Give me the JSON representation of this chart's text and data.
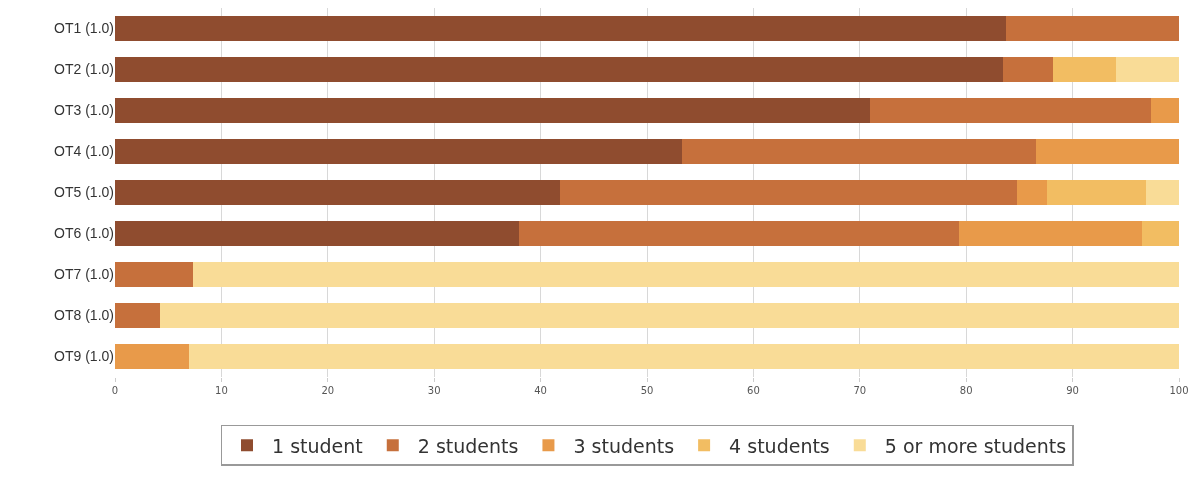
{
  "chart_data": {
    "type": "bar",
    "orientation": "horizontal",
    "stacked": true,
    "categories": [
      "OT1 (1.0)",
      "OT2 (1.0)",
      "OT3 (1.0)",
      "OT4 (1.0)",
      "OT5 (1.0)",
      "OT6 (1.0)",
      "OT7 (1.0)",
      "OT8 (1.0)",
      "OT9 (1.0)"
    ],
    "series": [
      {
        "name": "1 student",
        "color": "#8f4c2f",
        "values": [
          83.7,
          83.5,
          71.0,
          53.3,
          41.8,
          38.0,
          0,
          0,
          0
        ]
      },
      {
        "name": "2 students",
        "color": "#c6703c",
        "values": [
          16.3,
          4.7,
          26.4,
          33.3,
          43.0,
          41.3,
          7.3,
          4.2,
          0
        ]
      },
      {
        "name": "3 students",
        "color": "#e89a4a",
        "values": [
          0,
          0,
          2.6,
          13.4,
          2.8,
          17.2,
          0,
          0,
          7.0
        ]
      },
      {
        "name": "4 students",
        "color": "#f2bd62",
        "values": [
          0,
          5.9,
          0,
          0,
          9.3,
          3.5,
          0,
          0,
          0
        ]
      },
      {
        "name": "5 or more students",
        "color": "#f9dc97",
        "values": [
          0,
          5.9,
          0,
          0,
          3.1,
          0,
          92.7,
          95.8,
          93.0
        ]
      }
    ],
    "xlim": [
      0,
      100
    ],
    "xticks": [
      0,
      10,
      20,
      30,
      40,
      50,
      60,
      70,
      80,
      90,
      100
    ],
    "grid": "x",
    "legend": "bottom"
  }
}
